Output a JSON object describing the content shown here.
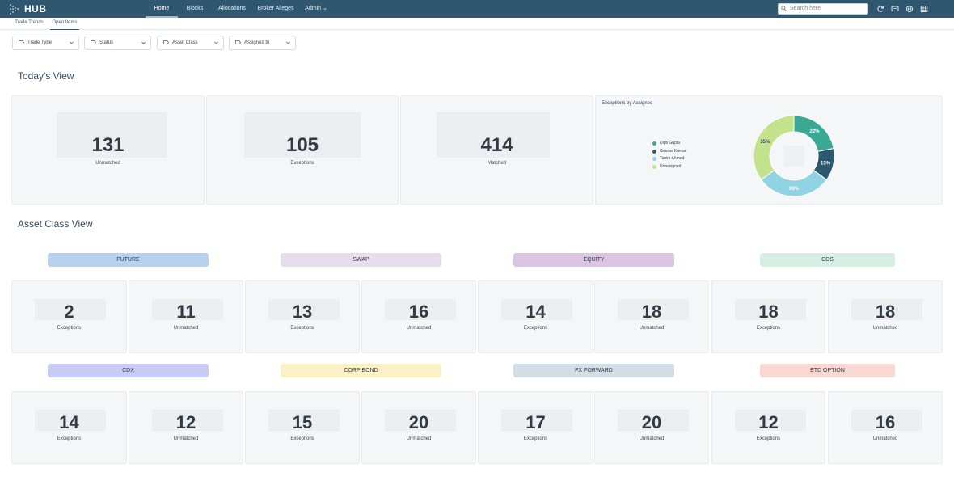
{
  "header": {
    "logo_text": "HUB",
    "nav": [
      "Home",
      "Blocks",
      "Allocations",
      "Broker Alleges",
      "Admin ⌄"
    ],
    "search_placeholder": "Search here",
    "icons": [
      "refresh-icon",
      "chat-icon",
      "globe-icon",
      "grid-icon"
    ]
  },
  "subtabs": [
    "Trade Trends",
    "Open Items"
  ],
  "filters": [
    "Trade Type",
    "Status",
    "Asset Class",
    "Assigned to"
  ],
  "today": {
    "title": "Today's View",
    "cards": [
      {
        "value": "131",
        "label": "Unmatched"
      },
      {
        "value": "105",
        "label": "Exceptions"
      },
      {
        "value": "414",
        "label": "Matched"
      }
    ]
  },
  "donut": {
    "title": "Exceptions by Assignee",
    "legend": [
      "Dipti Gupta",
      "Gaurav Kumar",
      "Tanim Ahmed",
      "Unassigned"
    ],
    "colors": [
      "#3ba894",
      "#2c5870",
      "#90d4e3",
      "#c2e38c"
    ],
    "labels": [
      "22%",
      "13%",
      "30%",
      "35%"
    ]
  },
  "chart_data": {
    "type": "pie",
    "title": "Exceptions by Assignee",
    "categories": [
      "Dipti Gupta",
      "Gaurav Kumar",
      "Tanim Ahmed",
      "Unassigned"
    ],
    "values": [
      22,
      13,
      30,
      35
    ],
    "legend": "left"
  },
  "asset": {
    "title": "Asset Class View",
    "groups": [
      {
        "name": "FUTURE",
        "color": "#b7d2f0",
        "exceptions": "2",
        "unmatched": "11"
      },
      {
        "name": "SWAP",
        "color": "#e8ddef",
        "exceptions": "13",
        "unmatched": "16"
      },
      {
        "name": "EQUITY",
        "color": "#dbc5e2",
        "exceptions": "14",
        "unmatched": "18"
      },
      {
        "name": "CDS",
        "color": "#d6efe2",
        "exceptions": "18",
        "unmatched": "18"
      },
      {
        "name": "CDX",
        "color": "#c7cbf5",
        "exceptions": "14",
        "unmatched": "12"
      },
      {
        "name": "CORP BOND",
        "color": "#fbf1c6",
        "exceptions": "15",
        "unmatched": "20"
      },
      {
        "name": "FX FORWARD",
        "color": "#d3dde5",
        "exceptions": "17",
        "unmatched": "20"
      },
      {
        "name": "ETD OPTION",
        "color": "#f9d8d3",
        "exceptions": "12",
        "unmatched": "16"
      }
    ],
    "exceptions_label": "Exceptions",
    "unmatched_label": "Unmatched"
  }
}
